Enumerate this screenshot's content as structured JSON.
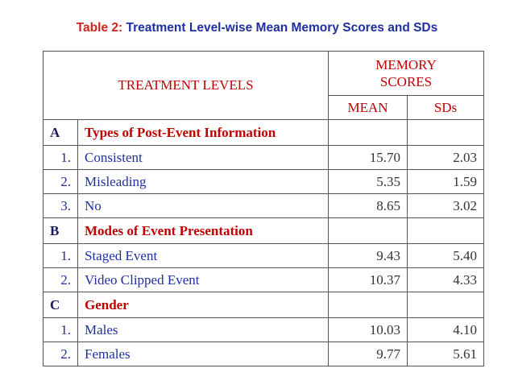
{
  "title": {
    "label": "Table 2:",
    "text": "Treatment Level-wise Mean Memory Scores and SDs"
  },
  "table": {
    "header": {
      "treatment": "TREATMENT LEVELS",
      "scores": "MEMORY SCORES",
      "mean": "MEAN",
      "sd": "SDs"
    },
    "sections": [
      {
        "letter": "A",
        "title": "Types of Post-Event Information",
        "rows": [
          {
            "num": "1.",
            "label": "Consistent",
            "mean": "15.70",
            "sd": "2.03"
          },
          {
            "num": "2.",
            "label": "Misleading",
            "mean": "5.35",
            "sd": "1.59"
          },
          {
            "num": "3.",
            "label": "No",
            "mean": "8.65",
            "sd": "3.02"
          }
        ]
      },
      {
        "letter": "B",
        "title": "Modes of Event Presentation",
        "rows": [
          {
            "num": "1.",
            "label": "Staged Event",
            "mean": "9.43",
            "sd": "5.40"
          },
          {
            "num": "2.",
            "label": "Video Clipped Event",
            "mean": "10.37",
            "sd": "4.33"
          }
        ]
      },
      {
        "letter": "C",
        "title": "Gender",
        "rows": [
          {
            "num": "1.",
            "label": "Males",
            "mean": "10.03",
            "sd": "4.10"
          },
          {
            "num": "2.",
            "label": "Females",
            "mean": "9.77",
            "sd": "5.61"
          }
        ]
      }
    ]
  }
}
